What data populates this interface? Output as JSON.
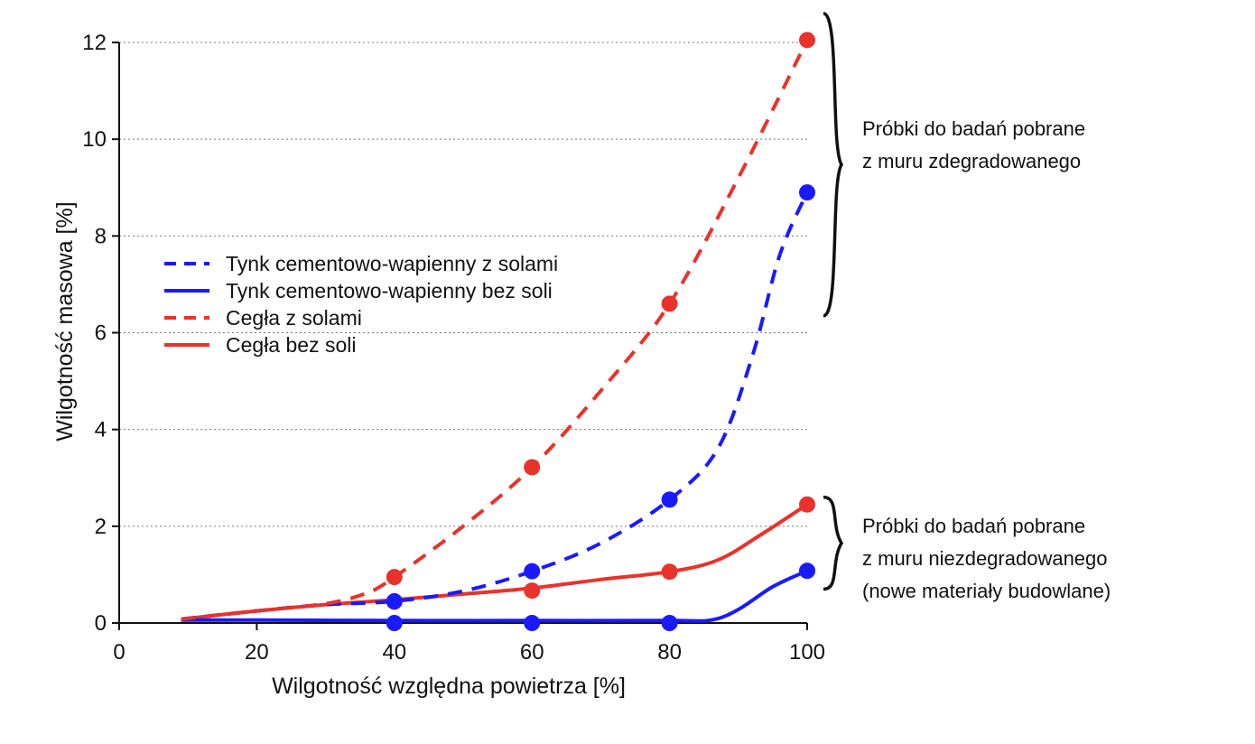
{
  "chart_data": {
    "type": "line",
    "title": "",
    "xlabel": "Wilgotność względna powietrza [%]",
    "ylabel": "Wilgotność masowa [%]",
    "xlim": [
      0,
      100
    ],
    "ylim": [
      0,
      12
    ],
    "x_ticks": [
      "0",
      "20",
      "40",
      "60",
      "80",
      "100"
    ],
    "y_ticks": [
      "0",
      "2",
      "4",
      "6",
      "8",
      "10",
      "12"
    ],
    "grid": "horizontal dotted",
    "legend_position": "center-left",
    "series": [
      {
        "name": "Tynk cementowo-wapienny z solami",
        "color": "#1a1aff",
        "line_style": "dashed",
        "points": [
          [
            40,
            0.45
          ],
          [
            60,
            1.07
          ],
          [
            80,
            2.55
          ],
          [
            100,
            8.9
          ]
        ],
        "curve": [
          [
            9,
            0.08
          ],
          [
            20,
            0.25
          ],
          [
            30,
            0.38
          ],
          [
            40,
            0.45
          ],
          [
            50,
            0.66
          ],
          [
            60,
            1.07
          ],
          [
            70,
            1.65
          ],
          [
            80,
            2.55
          ],
          [
            87,
            3.6
          ],
          [
            92,
            5.5
          ],
          [
            96,
            7.6
          ],
          [
            100,
            8.9
          ]
        ]
      },
      {
        "name": "Tynk cementowo-wapienny bez soli",
        "color": "#1a1aff",
        "line_style": "solid",
        "points": [
          [
            40,
            0.0
          ],
          [
            60,
            0.0
          ],
          [
            80,
            0.0
          ],
          [
            100,
            1.08
          ]
        ],
        "curve": [
          [
            9,
            0.06
          ],
          [
            20,
            0.06
          ],
          [
            40,
            0.05
          ],
          [
            60,
            0.05
          ],
          [
            80,
            0.05
          ],
          [
            86,
            0.06
          ],
          [
            90,
            0.28
          ],
          [
            95,
            0.75
          ],
          [
            100,
            1.08
          ]
        ]
      },
      {
        "name": "Cegła z solami",
        "color": "#e8332a",
        "line_style": "dashed",
        "points": [
          [
            40,
            0.95
          ],
          [
            60,
            3.22
          ],
          [
            80,
            6.6
          ],
          [
            100,
            12.05
          ]
        ],
        "curve": [
          [
            9,
            0.08
          ],
          [
            20,
            0.25
          ],
          [
            30,
            0.4
          ],
          [
            36,
            0.62
          ],
          [
            40,
            0.95
          ],
          [
            50,
            2.0
          ],
          [
            60,
            3.22
          ],
          [
            70,
            4.8
          ],
          [
            80,
            6.6
          ],
          [
            90,
            9.2
          ],
          [
            100,
            12.05
          ]
        ]
      },
      {
        "name": "Cegła bez soli",
        "color": "#e8332a",
        "line_style": "solid",
        "points": [
          [
            40,
            0.44
          ],
          [
            60,
            0.67
          ],
          [
            80,
            1.06
          ],
          [
            100,
            2.45
          ]
        ],
        "curve": [
          [
            9,
            0.08
          ],
          [
            20,
            0.25
          ],
          [
            30,
            0.38
          ],
          [
            40,
            0.48
          ],
          [
            50,
            0.6
          ],
          [
            60,
            0.72
          ],
          [
            70,
            0.9
          ],
          [
            80,
            1.06
          ],
          [
            87,
            1.3
          ],
          [
            93,
            1.8
          ],
          [
            100,
            2.45
          ]
        ]
      }
    ],
    "annotations": [
      {
        "id": "degraded",
        "lines": [
          "Próbki do badań pobrane",
          "z muru zdegradowanego"
        ],
        "y_range": [
          6.35,
          12.6
        ]
      },
      {
        "id": "new",
        "lines": [
          "Próbki do badań pobrane",
          "z muru niezdegradowanego",
          "(nowe materiały budowlane)"
        ],
        "y_range": [
          0.7,
          2.6
        ]
      }
    ]
  }
}
